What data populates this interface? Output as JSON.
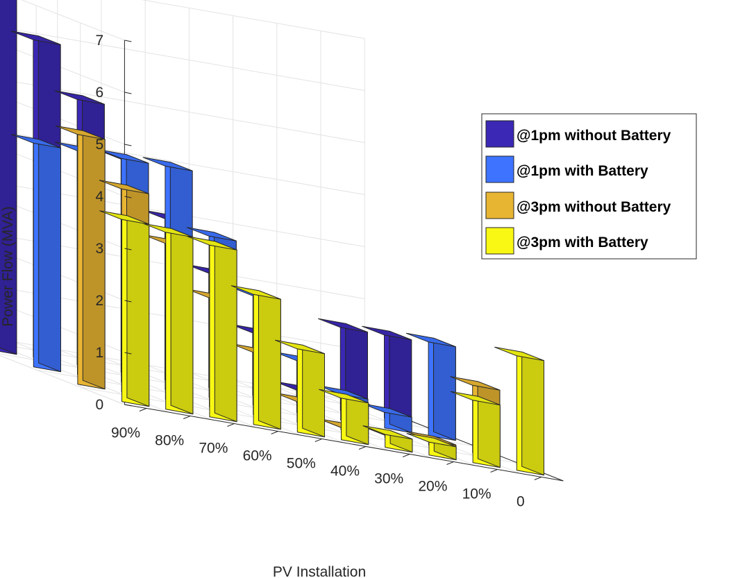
{
  "chart_data": {
    "type": "bar3d",
    "title": "",
    "xlabel": "PV Installation",
    "ylabel": "",
    "zlabel": "Power Flow (MVA)",
    "zlim": [
      0,
      7
    ],
    "zticks": [
      "0",
      "1",
      "2",
      "3",
      "4",
      "5",
      "6",
      "7"
    ],
    "categories": [
      "90%",
      "80%",
      "70%",
      "60%",
      "50%",
      "40%",
      "30%",
      "20%",
      "10%",
      "0"
    ],
    "grid": true,
    "legend_position": "top-right",
    "series": [
      {
        "name": "@1pm without Battery",
        "color": "#3b28b5",
        "values": [
          7.0,
          6.1,
          5.1,
          4.1,
          3.1,
          2.2,
          1.2,
          0.25,
          1.6,
          1.6
        ]
      },
      {
        "name": "@1pm with Battery",
        "color": "#3d73ff",
        "values": [
          4.3,
          4.3,
          4.3,
          4.3,
          3.1,
          2.1,
          1.0,
          0.5,
          0.3,
          1.8
        ]
      },
      {
        "name": "@3pm without Battery",
        "color": "#e8b532",
        "values": [
          4.8,
          3.9,
          3.0,
          2.1,
          1.2,
          0.4,
          0.05,
          0.05,
          0.1,
          1.3
        ]
      },
      {
        "name": "@3pm with Battery",
        "color": "#f8f814",
        "values": [
          3.5,
          3.4,
          3.3,
          2.5,
          1.6,
          0.8,
          0.25,
          0.25,
          1.2,
          2.2
        ]
      }
    ]
  }
}
